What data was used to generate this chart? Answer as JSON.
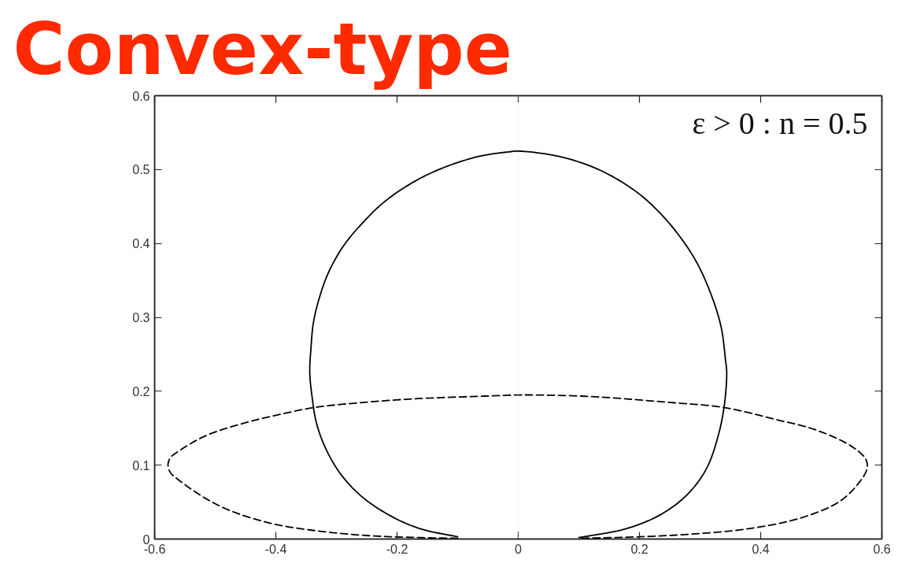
{
  "chart_data": {
    "type": "line",
    "title": "Convex-type",
    "annotations": [
      "ε > 0 : n = 0.5"
    ],
    "xlim": [
      -0.6,
      0.6
    ],
    "ylim": [
      0,
      0.6
    ],
    "xticks": [
      -0.6,
      -0.4,
      -0.2,
      0,
      0.2,
      0.4,
      0.6
    ],
    "yticks": [
      0,
      0.1,
      0.2,
      0.3,
      0.4,
      0.5,
      0.6
    ],
    "grid": false,
    "ref_lines": [
      {
        "axis": "x",
        "value": 0,
        "color": "#c8c8c8",
        "line_style": "dotted"
      }
    ],
    "series": [
      {
        "color": "#000000",
        "line_style": "solid",
        "x": [
          -0.1,
          -0.162,
          -0.21,
          -0.259,
          -0.294,
          -0.318,
          -0.333,
          -0.34,
          -0.344,
          -0.342,
          -0.338,
          -0.328,
          -0.313,
          -0.289,
          -0.259,
          -0.22,
          -0.171,
          -0.122,
          -0.064,
          -0.015,
          0,
          0.066,
          0.13,
          0.188,
          0.227,
          0.267,
          0.296,
          0.32,
          0.335,
          0.342,
          0.344,
          0.34,
          0.33,
          0.311,
          0.281,
          0.237,
          0.178,
          0.1
        ],
        "values": [
          0.003,
          0.014,
          0.031,
          0.058,
          0.089,
          0.123,
          0.157,
          0.191,
          0.225,
          0.259,
          0.293,
          0.327,
          0.361,
          0.396,
          0.426,
          0.457,
          0.484,
          0.503,
          0.518,
          0.524,
          0.525,
          0.518,
          0.501,
          0.474,
          0.447,
          0.409,
          0.372,
          0.327,
          0.286,
          0.242,
          0.225,
          0.181,
          0.14,
          0.096,
          0.062,
          0.034,
          0.014,
          0.002
        ]
      },
      {
        "color": "#000000",
        "line_style": "dashed",
        "x": [
          -0.1,
          -0.166,
          -0.254,
          -0.341,
          -0.407,
          -0.474,
          -0.518,
          -0.562,
          -0.574,
          -0.578,
          -0.574,
          -0.562,
          -0.518,
          -0.452,
          -0.386,
          -0.337,
          -0.254,
          -0.166,
          -0.034,
          0,
          0.116,
          0.248,
          0.339,
          0.424,
          0.49,
          0.547,
          0.572,
          0.576,
          0.572,
          0.534,
          0.468,
          0.38,
          0.292,
          0.2,
          0.1
        ],
        "values": [
          0.001,
          0.002,
          0.005,
          0.012,
          0.021,
          0.038,
          0.056,
          0.081,
          0.09,
          0.1,
          0.11,
          0.118,
          0.139,
          0.157,
          0.17,
          0.178,
          0.185,
          0.19,
          0.194,
          0.195,
          0.193,
          0.185,
          0.178,
          0.162,
          0.148,
          0.127,
          0.11,
          0.1,
          0.088,
          0.053,
          0.029,
          0.014,
          0.007,
          0.003,
          0.001
        ]
      }
    ]
  }
}
